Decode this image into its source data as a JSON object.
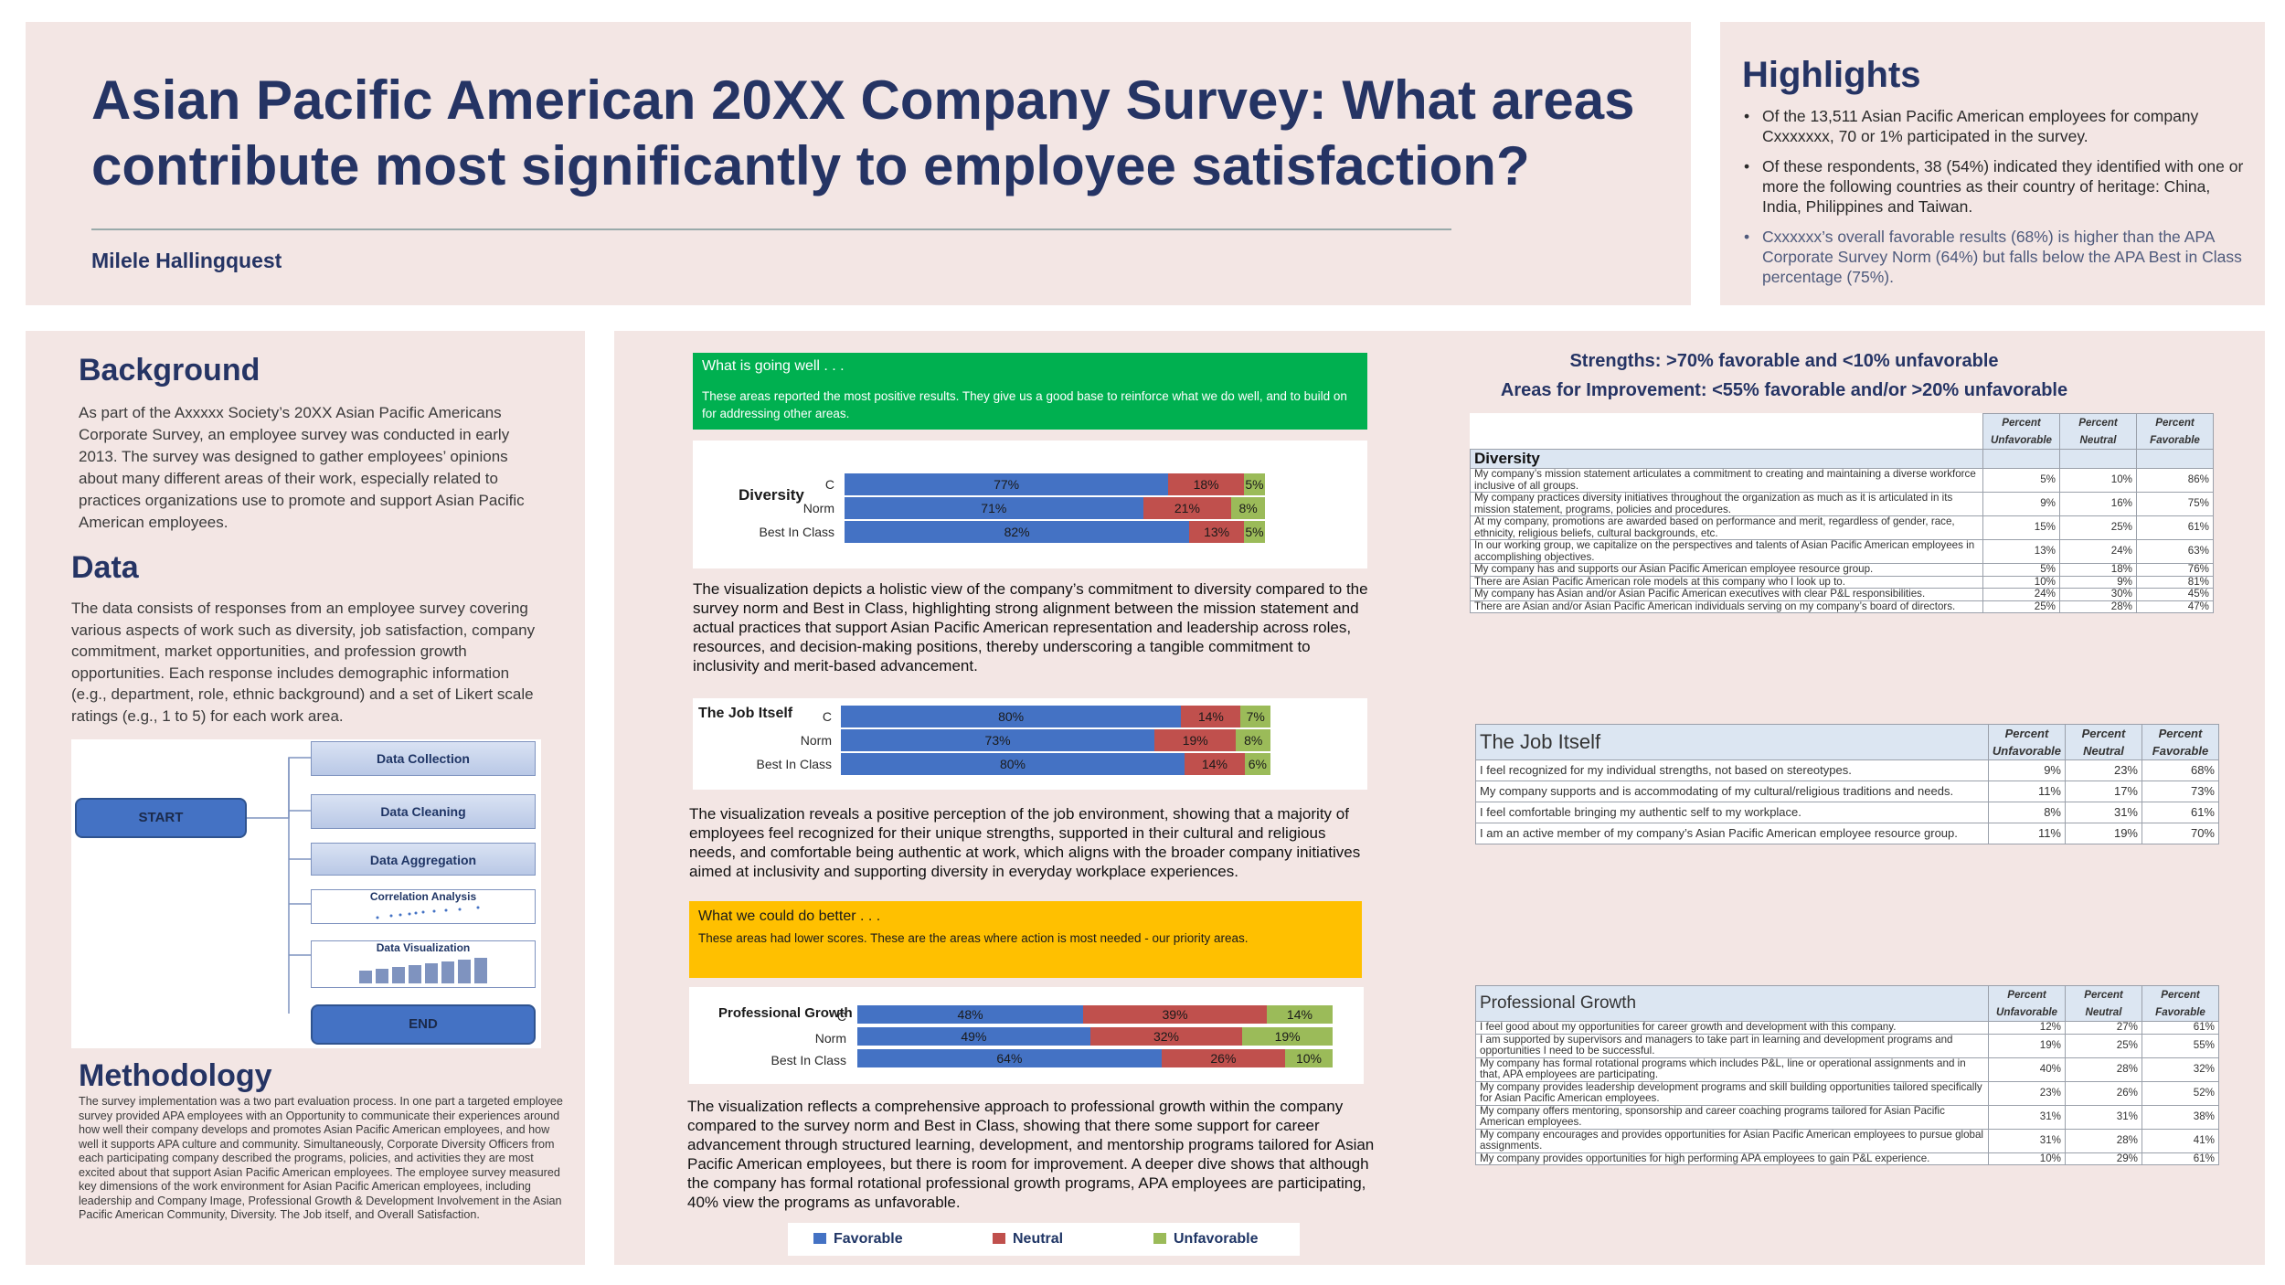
{
  "header": {
    "title": "Asian Pacific American 20XX Company Survey: What areas contribute most significantly to employee satisfaction?",
    "author": "Milele Hallingquest"
  },
  "highlights": {
    "title": "Highlights",
    "items": [
      "Of the 13,511 Asian Pacific American employees for company Cxxxxxxx, 70 or 1% participated in the survey.",
      "Of these respondents, 38 (54%) indicated they identified with one or more the following countries as their country of heritage: China, India, Philippines and Taiwan.",
      "Cxxxxxx’s overall favorable results (68%) is higher than the APA Corporate Survey Norm (64%) but falls below the APA Best in Class percentage (75%)."
    ]
  },
  "background": {
    "title": "Background",
    "text": "As part of the Axxxxx Society’s 20XX Asian Pacific Americans Corporate Survey, an employee survey was conducted in early 2013. The survey was designed to gather employees’ opinions about many different areas of their work, especially related to practices organizations use to promote and support Asian Pacific American employees."
  },
  "data_section": {
    "title": "Data",
    "text": "The data consists of responses from an employee survey covering various aspects of work such as diversity, job satisfaction, company commitment, market opportunities, and profession growth opportunities. Each response includes demographic information (e.g., department, role, ethnic background) and a set of Likert scale ratings (e.g., 1 to 5) for each work area."
  },
  "flowchart": {
    "start": "START",
    "end": "END",
    "steps": [
      "Data Collection",
      "Data Cleaning",
      "Data Aggregation",
      "Correlation Analysis",
      "Data Visualization"
    ]
  },
  "methodology": {
    "title": "Methodology",
    "text": "The survey implementation was a two part evaluation process. In one part a targeted employee survey provided APA employees with an Opportunity to communicate their experiences around how well their company develops and promotes Asian Pacific American employees, and how well it supports APA culture and community. Simultaneously, Corporate Diversity Officers from each participating company described the programs, policies, and activities they are most excited about that support Asian Pacific American employees. The employee survey measured key dimensions of the work environment for Asian Pacific American employees, including leadership and Company Image, Professional Growth & Development Involvement in the Asian Pacific American Community, Diversity. The Job itself, and Overall Satisfaction."
  },
  "going_well": {
    "title": "What is going well . . .",
    "text": "These areas reported the most positive results. They give us a good base to reinforce what we do well, and to build on for addressing other areas."
  },
  "do_better": {
    "title": "What we could do better . . .",
    "text": "These areas had lower scores. These are the areas where action is most needed - our priority areas."
  },
  "descriptions": {
    "diversity": "The visualization depicts a holistic view of the company’s commitment to diversity compared to the survey norm and Best in Class, highlighting strong alignment between the mission statement and actual practices that support Asian Pacific American representation and leadership across roles, resources, and decision-making positions, thereby underscoring a tangible commitment to inclusivity and merit-based advancement.",
    "job": "The visualization reveals a positive perception of the job environment, showing that a majority of employees feel recognized for their unique strengths, supported in their cultural and religious needs, and comfortable being authentic at work, which aligns with the broader company initiatives aimed at inclusivity and supporting diversity in everyday workplace experiences.",
    "growth": "The visualization reflects a comprehensive approach to professional growth within the company compared to the survey norm and Best in Class, showing that there some support for career advancement through structured learning, development, and mentorship programs tailored for Asian Pacific American employees, but there is room for improvement. A deeper dive shows that although the company has formal rotational professional growth programs, APA employees are participating, 40% view the programs as unfavorable."
  },
  "chart_data": [
    {
      "type": "bar",
      "stacked": true,
      "orientation": "horizontal",
      "title": "Diversity",
      "categories": [
        "C",
        "Norm",
        "Best In Class"
      ],
      "series": [
        {
          "name": "Favorable",
          "values": [
            77,
            71,
            82
          ]
        },
        {
          "name": "Neutral",
          "values": [
            18,
            21,
            13
          ]
        },
        {
          "name": "Unfavorable",
          "values": [
            5,
            8,
            5
          ]
        }
      ]
    },
    {
      "type": "bar",
      "stacked": true,
      "orientation": "horizontal",
      "title": "The Job Itself",
      "categories": [
        "C",
        "Norm",
        "Best In Class"
      ],
      "series": [
        {
          "name": "Favorable",
          "values": [
            80,
            73,
            80
          ]
        },
        {
          "name": "Neutral",
          "values": [
            14,
            19,
            14
          ]
        },
        {
          "name": "Unfavorable",
          "values": [
            7,
            8,
            6
          ]
        }
      ]
    },
    {
      "type": "bar",
      "stacked": true,
      "orientation": "horizontal",
      "title": "Professional Growth",
      "categories": [
        "C",
        "Norm",
        "Best In Class"
      ],
      "series": [
        {
          "name": "Favorable",
          "values": [
            48,
            49,
            64
          ]
        },
        {
          "name": "Neutral",
          "values": [
            39,
            32,
            26
          ]
        },
        {
          "name": "Unfavorable",
          "values": [
            14,
            19,
            10
          ]
        }
      ]
    }
  ],
  "legend": {
    "favorable": "Favorable",
    "neutral": "Neutral",
    "unfavorable": "Unfavorable"
  },
  "colors": {
    "favorable": "#4472c4",
    "neutral": "#c0504d",
    "unfavorable": "#9bbb59",
    "title": "#253464",
    "going_well": "#00b050",
    "do_better": "#ffc000"
  },
  "criteria": {
    "strengths": "Strengths: >70% favorable and <10% unfavorable",
    "improve": "Areas for Improvement: <55% favorable and/or >20% unfavorable"
  },
  "tables": {
    "headers": [
      "Percent Unfavorable",
      "Percent Neutral",
      "Percent Favorable"
    ],
    "diversity": {
      "title": "Diversity",
      "rows": [
        {
          "item": "My company’s mission statement articulates a commitment to creating and maintaining a diverse workforce inclusive of all groups.",
          "unf": "5%",
          "neu": "10%",
          "fav": "86%"
        },
        {
          "item": "My company practices diversity initiatives throughout the organization as much as it is articulated in its mission statement, programs, policies and procedures.",
          "unf": "9%",
          "neu": "16%",
          "fav": "75%"
        },
        {
          "item": "At my company, promotions are awarded based on performance and merit, regardless of gender, race, ethnicity, religious beliefs, cultural backgrounds, etc.",
          "unf": "15%",
          "neu": "25%",
          "fav": "61%"
        },
        {
          "item": "In our working group, we capitalize on the perspectives and talents of Asian Pacific American employees in accomplishing objectives.",
          "unf": "13%",
          "neu": "24%",
          "fav": "63%"
        },
        {
          "item": "My company has and supports our Asian Pacific American employee resource group.",
          "unf": "5%",
          "neu": "18%",
          "fav": "76%"
        },
        {
          "item": "There are Asian Pacific American role models at this company who I look up to.",
          "unf": "10%",
          "neu": "9%",
          "fav": "81%"
        },
        {
          "item": "My company has Asian and/or Asian Pacific American executives with clear P&L responsibilities.",
          "unf": "24%",
          "neu": "30%",
          "fav": "45%"
        },
        {
          "item": "There are Asian and/or Asian Pacific American individuals serving on my company’s board of directors.",
          "unf": "25%",
          "neu": "28%",
          "fav": "47%"
        }
      ]
    },
    "job": {
      "title": "The Job Itself",
      "rows": [
        {
          "item": "I feel recognized for my individual strengths, not based on stereotypes.",
          "unf": "9%",
          "neu": "23%",
          "fav": "68%"
        },
        {
          "item": "My company supports and is accommodating of my cultural/religious traditions and needs.",
          "unf": "11%",
          "neu": "17%",
          "fav": "73%"
        },
        {
          "item": "I feel comfortable bringing my authentic self to my workplace.",
          "unf": "8%",
          "neu": "31%",
          "fav": "61%"
        },
        {
          "item": "I am an active member of my company’s Asian Pacific American employee resource group.",
          "unf": "11%",
          "neu": "19%",
          "fav": "70%"
        }
      ]
    },
    "growth": {
      "title": "Professional Growth",
      "rows": [
        {
          "item": "I feel good about my opportunities for career growth and development with this company.",
          "unf": "12%",
          "neu": "27%",
          "fav": "61%"
        },
        {
          "item": "I am supported by supervisors and managers to take part in learning and development programs and opportunities I need to be successful.",
          "unf": "19%",
          "neu": "25%",
          "fav": "55%"
        },
        {
          "item": "My company has formal rotational programs which includes P&L, line or operational assignments and in that, APA employees are participating.",
          "unf": "40%",
          "neu": "28%",
          "fav": "32%"
        },
        {
          "item": "My company provides leadership development programs and skill building opportunities tailored specifically for Asian Pacific American employees.",
          "unf": "23%",
          "neu": "26%",
          "fav": "52%"
        },
        {
          "item": "My company offers mentoring, sponsorship and career coaching programs tailored for Asian Pacific American employees.",
          "unf": "31%",
          "neu": "31%",
          "fav": "38%"
        },
        {
          "item": "My company encourages and provides opportunities for Asian Pacific American employees to pursue global assignments.",
          "unf": "31%",
          "neu": "28%",
          "fav": "41%"
        },
        {
          "item": "My company provides opportunities for high performing APA employees to gain P&L experience.",
          "unf": "10%",
          "neu": "29%",
          "fav": "61%"
        }
      ]
    }
  }
}
